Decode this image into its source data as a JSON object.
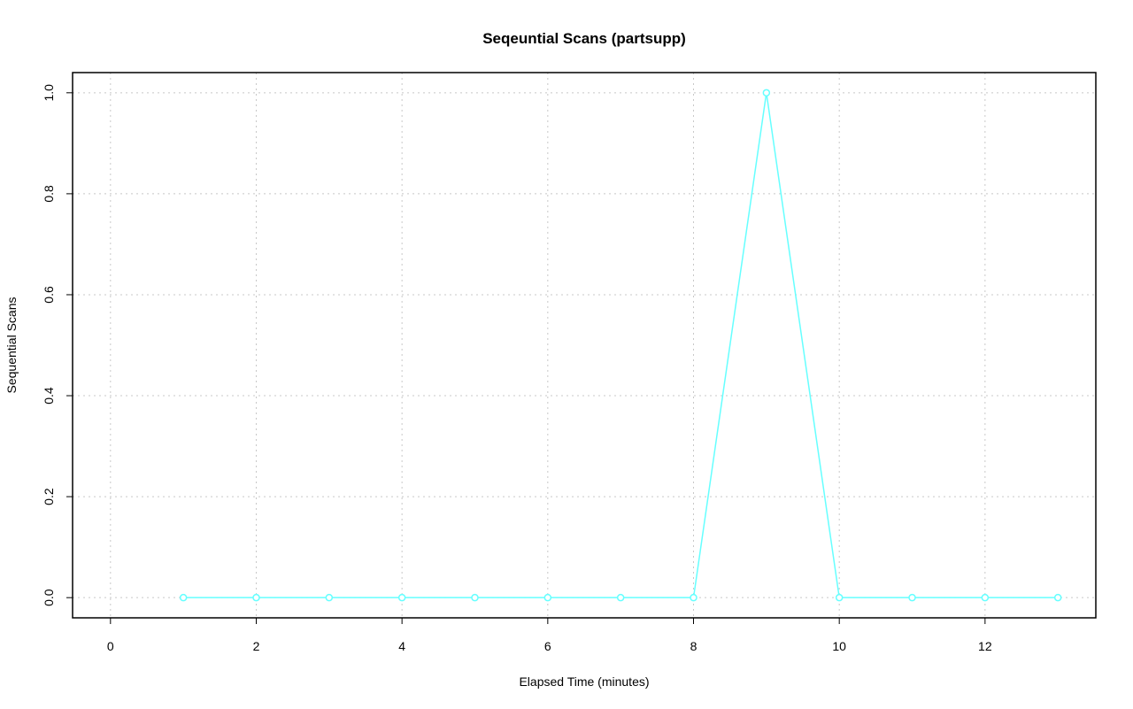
{
  "chart_data": {
    "type": "line",
    "title": "Seqeuntial Scans (partsupp)",
    "x_label": "Elapsed Time (minutes)",
    "y_label": "Sequential Scans",
    "x": [
      1,
      2,
      3,
      4,
      5,
      6,
      7,
      8,
      9,
      10,
      11,
      12,
      13
    ],
    "series": [
      {
        "color": "#66ffff",
        "values": [
          0,
          0,
          0,
          0,
          0,
          0,
          0,
          0,
          1,
          0,
          0,
          0,
          0
        ]
      }
    ],
    "xlim": [
      -0.52,
      13.52
    ],
    "ylim": [
      -0.04,
      1.04
    ],
    "xticks": [
      0,
      2,
      4,
      6,
      8,
      10,
      12
    ],
    "yticks": [
      {
        "value": 0,
        "label": "0.0"
      },
      {
        "value": 0.2,
        "label": "0.2"
      },
      {
        "value": 0.4,
        "label": "0.4"
      },
      {
        "value": 0.6,
        "label": "0.6"
      },
      {
        "value": 0.8,
        "label": "0.8"
      },
      {
        "value": 1,
        "label": "1.0"
      }
    ],
    "grid": true
  }
}
